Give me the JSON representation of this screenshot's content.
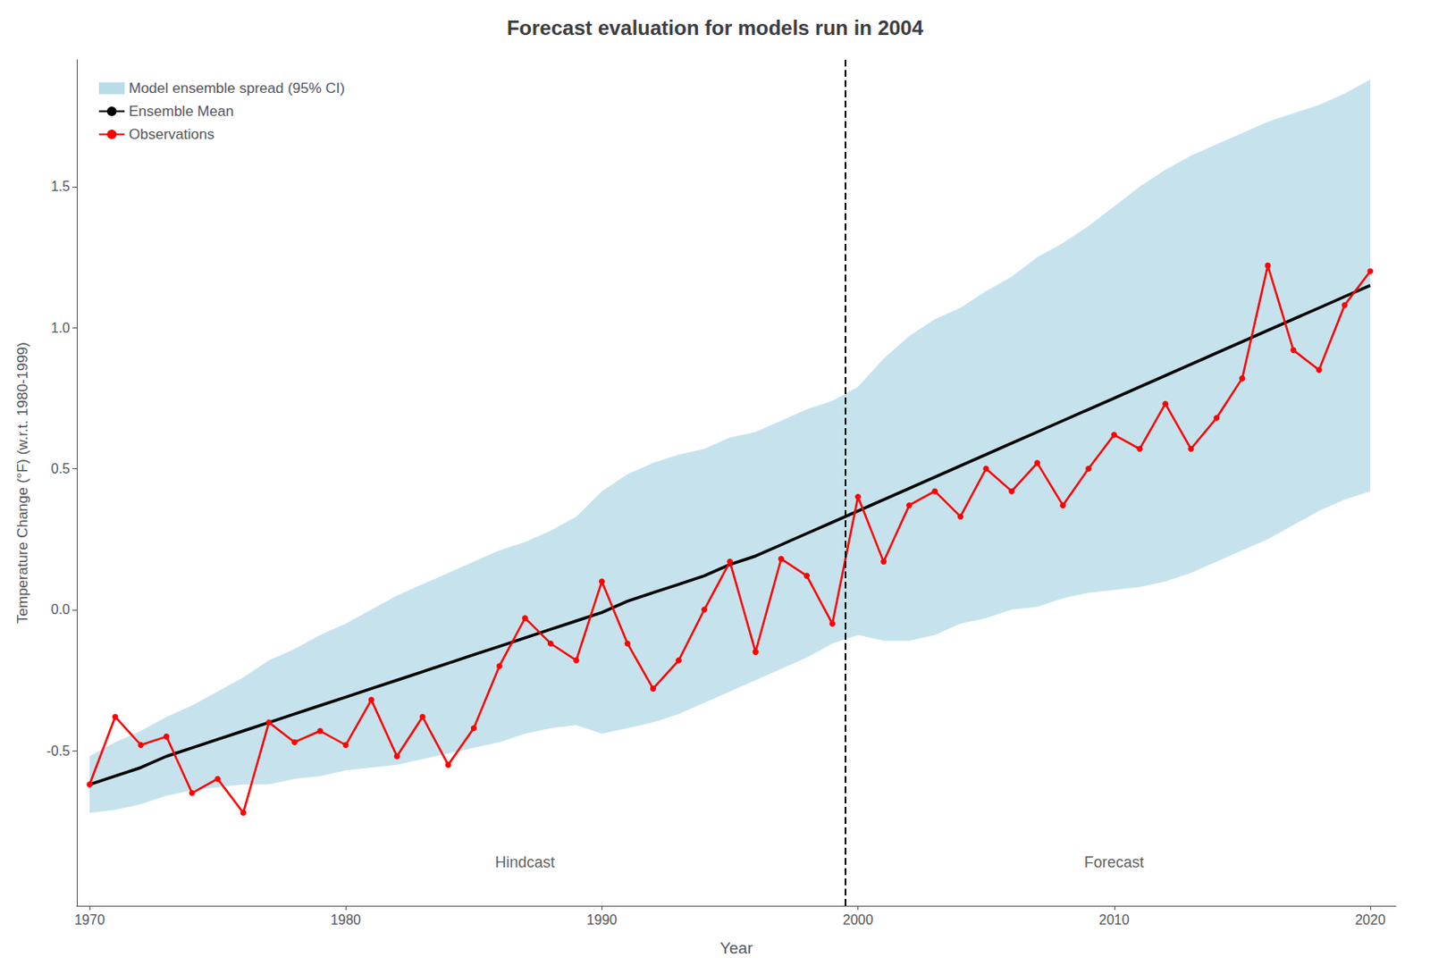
{
  "chart_data": {
    "type": "line",
    "title": "Forecast evaluation for models run in 2004",
    "x_label": "Year",
    "y_label": "Temperature Change (°F) (w.r.t. 1980-1999)",
    "xlim": [
      1969.5,
      2021
    ],
    "ylim": [
      -1.05,
      1.95
    ],
    "xticks": [
      1970,
      1980,
      1990,
      2000,
      2010,
      2020
    ],
    "yticks": [
      -0.5,
      {
        "value": 0.0,
        "label": "0.0"
      },
      0.5,
      {
        "value": 1.0,
        "label": "1.0"
      },
      1.5
    ],
    "grid": false,
    "legend": "upper left",
    "x": [
      1970,
      1971,
      1972,
      1973,
      1974,
      1975,
      1976,
      1977,
      1978,
      1979,
      1980,
      1981,
      1982,
      1983,
      1984,
      1985,
      1986,
      1987,
      1988,
      1989,
      1990,
      1991,
      1992,
      1993,
      1994,
      1995,
      1996,
      1997,
      1998,
      1999,
      2000,
      2001,
      2002,
      2003,
      2004,
      2005,
      2006,
      2007,
      2008,
      2009,
      2010,
      2011,
      2012,
      2013,
      2014,
      2015,
      2016,
      2017,
      2018,
      2019,
      2020
    ],
    "series": [
      {
        "name": "Model ensemble spread (95% CI)",
        "type": "band",
        "color": "#b8dce8",
        "upper": [
          -0.52,
          -0.47,
          -0.43,
          -0.38,
          -0.34,
          -0.29,
          -0.24,
          -0.18,
          -0.14,
          -0.09,
          -0.05,
          0.0,
          0.05,
          0.09,
          0.13,
          0.17,
          0.21,
          0.24,
          0.28,
          0.33,
          0.42,
          0.48,
          0.52,
          0.55,
          0.57,
          0.61,
          0.63,
          0.67,
          0.71,
          0.74,
          0.79,
          0.89,
          0.97,
          1.03,
          1.07,
          1.13,
          1.18,
          1.25,
          1.3,
          1.36,
          1.43,
          1.5,
          1.56,
          1.61,
          1.65,
          1.69,
          1.73,
          1.76,
          1.79,
          1.83,
          1.88
        ],
        "lower": [
          -0.72,
          -0.71,
          -0.69,
          -0.66,
          -0.64,
          -0.63,
          -0.62,
          -0.62,
          -0.6,
          -0.59,
          -0.57,
          -0.56,
          -0.55,
          -0.53,
          -0.51,
          -0.49,
          -0.47,
          -0.44,
          -0.42,
          -0.41,
          -0.44,
          -0.42,
          -0.4,
          -0.37,
          -0.33,
          -0.29,
          -0.25,
          -0.21,
          -0.17,
          -0.12,
          -0.09,
          -0.11,
          -0.11,
          -0.09,
          -0.05,
          -0.03,
          0.0,
          0.01,
          0.04,
          0.06,
          0.07,
          0.08,
          0.1,
          0.13,
          0.17,
          0.21,
          0.25,
          0.3,
          0.35,
          0.39,
          0.42
        ]
      },
      {
        "name": "Ensemble Mean",
        "type": "line",
        "color": "#000000",
        "marker": "none",
        "values": [
          -0.62,
          -0.59,
          -0.56,
          -0.52,
          -0.49,
          -0.46,
          -0.43,
          -0.4,
          -0.37,
          -0.34,
          -0.31,
          -0.28,
          -0.25,
          -0.22,
          -0.19,
          -0.16,
          -0.13,
          -0.1,
          -0.07,
          -0.04,
          -0.01,
          0.03,
          0.06,
          0.09,
          0.12,
          0.16,
          0.19,
          0.23,
          0.27,
          0.31,
          0.35,
          0.39,
          0.43,
          0.47,
          0.51,
          0.55,
          0.59,
          0.63,
          0.67,
          0.71,
          0.75,
          0.79,
          0.83,
          0.87,
          0.91,
          0.95,
          0.99,
          1.03,
          1.07,
          1.11,
          1.15
        ]
      },
      {
        "name": "Observations",
        "type": "line",
        "color": "#ff0000",
        "marker": "circle",
        "values": [
          -0.62,
          -0.38,
          -0.48,
          -0.45,
          -0.65,
          -0.6,
          -0.72,
          -0.4,
          -0.47,
          -0.43,
          -0.48,
          -0.32,
          -0.52,
          -0.38,
          -0.55,
          -0.42,
          -0.2,
          -0.03,
          -0.12,
          -0.18,
          0.1,
          -0.12,
          -0.28,
          -0.18,
          0.0,
          0.17,
          -0.15,
          0.18,
          0.12,
          -0.05,
          0.4,
          0.17,
          0.37,
          0.42,
          0.33,
          0.5,
          0.42,
          0.52,
          0.37,
          0.5,
          0.62,
          0.57,
          0.73,
          0.57,
          0.68,
          0.82,
          1.22,
          0.92,
          0.85,
          1.08,
          1.2
        ]
      }
    ],
    "vline": {
      "x": 1999.5,
      "color": "#000000",
      "line_style": "dashed"
    },
    "annotations": [
      {
        "text": "Hindcast",
        "x": 1987,
        "y": -0.93
      },
      {
        "text": "Forecast",
        "x": 2010,
        "y": -0.93
      }
    ]
  }
}
